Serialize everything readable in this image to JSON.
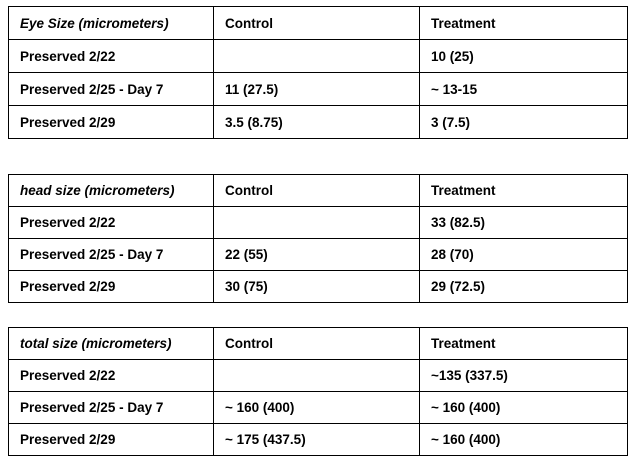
{
  "page": {
    "background_color": "#ffffff",
    "text_color": "#000000",
    "border_color": "#000000"
  },
  "tables": [
    {
      "id": "eye-size",
      "header": [
        "Eye Size (micrometers)",
        "Control",
        "Treatment"
      ],
      "rows": [
        [
          "Preserved 2/22",
          "",
          "10 (25)"
        ],
        [
          "Preserved 2/25 - Day 7",
          "11 (27.5)",
          "~ 13-15"
        ],
        [
          "Preserved 2/29",
          "3.5 (8.75)",
          "3 (7.5)"
        ]
      ]
    },
    {
      "id": "head-size",
      "header": [
        "head size (micrometers)",
        "Control",
        "Treatment"
      ],
      "rows": [
        [
          "Preserved 2/22",
          "",
          "33 (82.5)"
        ],
        [
          "Preserved 2/25 - Day 7",
          "22 (55)",
          "28 (70)"
        ],
        [
          "Preserved 2/29",
          "30 (75)",
          "29 (72.5)"
        ]
      ]
    },
    {
      "id": "total-size",
      "header": [
        "total size (micrometers)",
        "Control",
        "Treatment"
      ],
      "rows": [
        [
          "Preserved 2/22",
          "",
          "~135 (337.5)"
        ],
        [
          "Preserved 2/25 - Day 7",
          "~ 160 (400)",
          "~ 160 (400)"
        ],
        [
          "Preserved 2/29",
          "~ 175 (437.5)",
          "~ 160 (400)"
        ]
      ]
    }
  ]
}
